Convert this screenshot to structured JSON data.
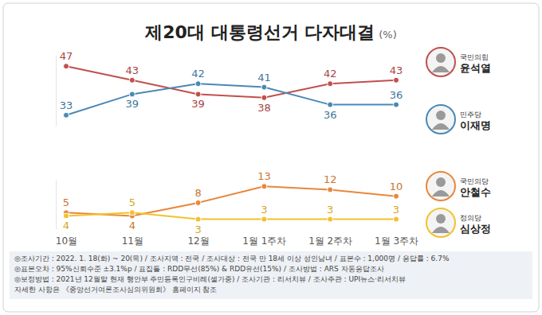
{
  "chart_data": [
    {
      "type": "line",
      "title": "제20대 대통령선거 다자대결",
      "subtitle": "(%)",
      "categories": [
        "10월",
        "11월",
        "12월",
        "1월 1주차",
        "1월 2주차",
        "1월 3주차"
      ],
      "series": [
        {
          "name": "윤석열",
          "party": "국민의힘",
          "color": "#c0504d",
          "values": [
            47,
            43,
            39,
            38,
            42,
            43
          ]
        },
        {
          "name": "이재명",
          "party": "민주당",
          "color": "#4b88b5",
          "values": [
            33,
            39,
            42,
            41,
            36,
            36
          ]
        }
      ],
      "ylim": [
        30,
        50
      ],
      "marker": "circle",
      "data_labels": true,
      "tick_labels": false,
      "grid": false
    },
    {
      "type": "line",
      "categories": [
        "10월",
        "11월",
        "12월",
        "1월 1주차",
        "1월 2주차",
        "1월 3주차"
      ],
      "series": [
        {
          "name": "안철수",
          "party": "국민의당",
          "color": "#e8873a",
          "values": [
            5,
            4,
            8,
            13,
            12,
            10
          ]
        },
        {
          "name": "심상정",
          "party": "정의당",
          "color": "#f2c12e",
          "values": [
            4,
            5,
            3,
            3,
            3,
            3
          ]
        }
      ],
      "ylim": [
        0,
        15
      ],
      "marker": "circle",
      "data_labels": true,
      "tick_labels": "x",
      "grid": false
    }
  ],
  "footnotes": [
    "◎조사기간 : 2022. 1. 18(화) ~ 20(목) / 조사지역 : 전국 / 조사대상 : 전국 만 18세 이상 성인남녀 / 표본수 : 1,000명 / 응답률 : 6.7%",
    "◎표본오차 : 95%신뢰수준 ±3.1%p / 표집틀 : RDD무선(85%) & RDD유선(15%) / 조사방법 : ARS 자동응답조사",
    "◎보정방법 : 2021년 12월말 현재 행안부 주민등록인구비례(셀가중) / 조사기관 : 리서치뷰 / 조사주관 : UPI뉴스·리서치뷰",
    "자세한 사항은 《중앙선거여론조사심의위원회》 홈페이지 참조"
  ]
}
